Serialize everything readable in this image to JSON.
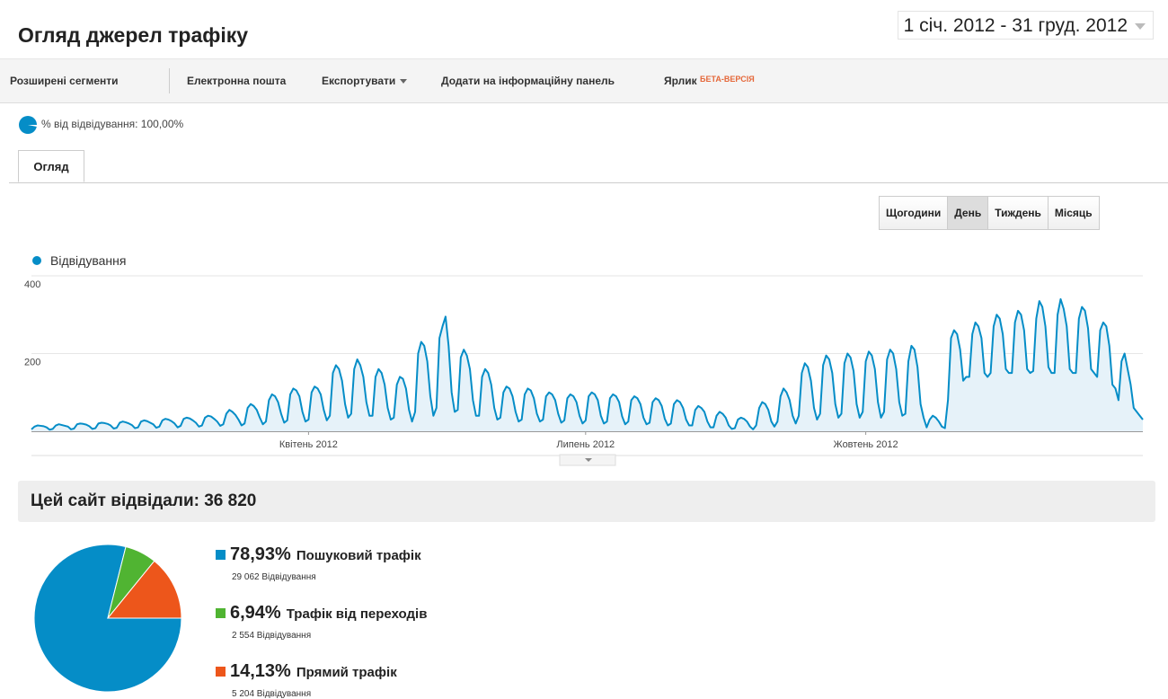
{
  "header": {
    "title": "Огляд джерел трафіку",
    "date_range": "1 січ. 2012 - 31 груд. 2012"
  },
  "toolbar": {
    "items": [
      "Розширені сегменти",
      "Електронна пошта",
      "Експортувати",
      "Додати на інформаційну панель",
      "Ярлик"
    ],
    "beta": "БЕТА-ВЕРСІЯ"
  },
  "segment": "% від відвідування: 100,00%",
  "tab": "Огляд",
  "granularity": {
    "options": [
      "Щогодини",
      "День",
      "Тиждень",
      "Місяць"
    ],
    "active": 1
  },
  "summary": "Цей сайт відвідали: 36 820",
  "chart_data": [
    {
      "type": "line",
      "series": [
        {
          "name": "Відвідування",
          "color": "#058dc7",
          "values": [
            5,
            12,
            15,
            14,
            13,
            10,
            4,
            6,
            15,
            18,
            16,
            14,
            12,
            5,
            7,
            18,
            20,
            19,
            17,
            13,
            6,
            8,
            20,
            22,
            21,
            19,
            15,
            7,
            9,
            22,
            25,
            23,
            20,
            16,
            8,
            10,
            25,
            28,
            26,
            22,
            18,
            9,
            12,
            28,
            32,
            30,
            26,
            20,
            10,
            14,
            32,
            35,
            33,
            28,
            22,
            12,
            15,
            35,
            40,
            38,
            32,
            25,
            14,
            18,
            45,
            55,
            50,
            42,
            30,
            15,
            20,
            60,
            70,
            65,
            55,
            35,
            18,
            25,
            80,
            95,
            90,
            75,
            45,
            22,
            28,
            95,
            110,
            105,
            90,
            50,
            25,
            30,
            100,
            115,
            110,
            95,
            55,
            28,
            40,
            150,
            170,
            160,
            130,
            70,
            35,
            45,
            160,
            185,
            170,
            140,
            75,
            40,
            40,
            140,
            160,
            150,
            120,
            60,
            30,
            35,
            120,
            140,
            135,
            110,
            55,
            25,
            50,
            200,
            230,
            220,
            180,
            90,
            40,
            60,
            240,
            270,
            295,
            220,
            100,
            50,
            55,
            190,
            210,
            195,
            160,
            80,
            40,
            40,
            140,
            160,
            150,
            120,
            60,
            30,
            35,
            100,
            115,
            110,
            90,
            50,
            25,
            30,
            95,
            110,
            105,
            85,
            45,
            25,
            30,
            90,
            100,
            95,
            80,
            45,
            22,
            28,
            85,
            95,
            90,
            75,
            40,
            20,
            28,
            90,
            100,
            95,
            80,
            40,
            20,
            25,
            85,
            95,
            90,
            75,
            38,
            18,
            25,
            80,
            90,
            85,
            70,
            35,
            18,
            22,
            75,
            85,
            80,
            65,
            32,
            15,
            20,
            70,
            80,
            75,
            60,
            30,
            15,
            15,
            55,
            65,
            60,
            50,
            25,
            10,
            10,
            40,
            50,
            45,
            35,
            15,
            6,
            8,
            30,
            35,
            32,
            25,
            12,
            5,
            15,
            60,
            75,
            70,
            55,
            25,
            12,
            25,
            90,
            110,
            100,
            80,
            40,
            20,
            40,
            150,
            175,
            165,
            130,
            60,
            30,
            45,
            170,
            195,
            185,
            150,
            70,
            35,
            45,
            175,
            200,
            190,
            155,
            70,
            35,
            50,
            180,
            205,
            195,
            160,
            75,
            35,
            50,
            185,
            210,
            200,
            160,
            75,
            40,
            45,
            180,
            220,
            210,
            165,
            70,
            35,
            10,
            30,
            40,
            35,
            25,
            12,
            8,
            80,
            240,
            260,
            250,
            210,
            130,
            140,
            140,
            250,
            280,
            270,
            240,
            150,
            140,
            150,
            270,
            300,
            290,
            250,
            160,
            150,
            150,
            280,
            310,
            300,
            260,
            160,
            150,
            155,
            290,
            335,
            320,
            270,
            165,
            150,
            150,
            300,
            340,
            315,
            270,
            160,
            150,
            150,
            290,
            320,
            310,
            265,
            160,
            150,
            140,
            260,
            280,
            270,
            220,
            120,
            110,
            80,
            180,
            200,
            160,
            120,
            60,
            50,
            40,
            30
          ]
        }
      ],
      "xlim": [
        0,
        365
      ],
      "xticks": [
        {
          "value": 91,
          "label": "Квітень 2012"
        },
        {
          "value": 182,
          "label": "Липень 2012"
        },
        {
          "value": 274,
          "label": "Жовтень 2012"
        }
      ],
      "ylim": [
        0,
        400
      ],
      "yticks": [
        200,
        400
      ],
      "grid": true
    },
    {
      "type": "pie",
      "categories": [
        "Пошуковий трафік",
        "Трафік від переходів",
        "Прямий трафік"
      ],
      "values": [
        78.93,
        6.94,
        14.13
      ],
      "value_labels": [
        "78,93%",
        "6,94%",
        "14,13%"
      ],
      "colors": [
        "#058dc7",
        "#50b432",
        "#ed561b"
      ],
      "visit_labels": [
        "29 062 Відвідування",
        "2 554 Відвідування",
        "5 204 Відвідування"
      ]
    }
  ]
}
